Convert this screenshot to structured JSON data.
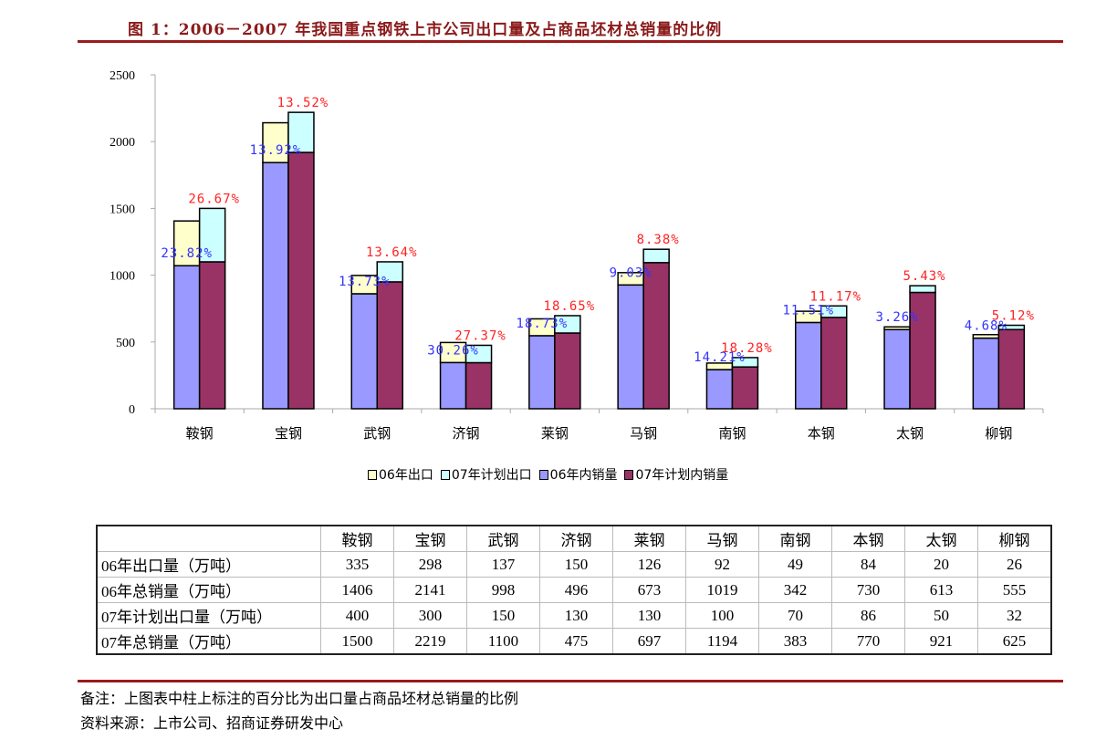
{
  "title": "图 1：2006－2007 年我国重点钢铁上市公司出口量及占商品坯材总销量的比例",
  "chart_data": {
    "type": "bar",
    "stacked": true,
    "categories": [
      "鞍钢",
      "宝钢",
      "武钢",
      "济钢",
      "莱钢",
      "马钢",
      "南钢",
      "本钢",
      "太钢",
      "柳钢"
    ],
    "yticks": [
      "0",
      "500",
      "1000",
      "1500",
      "2000",
      "2500"
    ],
    "ylim": [
      0,
      2500
    ],
    "grid": false,
    "legend_position": "bottom",
    "series": [
      {
        "name": "06年出口",
        "stack": "06",
        "color": "#FFFFCC",
        "values": [
          335,
          298,
          137,
          150,
          126,
          92,
          49,
          84,
          20,
          26
        ]
      },
      {
        "name": "07年计划出口",
        "stack": "07",
        "color": "#CCFFFF",
        "values": [
          400,
          300,
          150,
          130,
          130,
          100,
          70,
          86,
          50,
          32
        ]
      },
      {
        "name": "06年内销量",
        "stack": "06",
        "color": "#9999FF",
        "values": [
          1071,
          1843,
          861,
          346,
          547,
          927,
          293,
          646,
          593,
          529
        ]
      },
      {
        "name": "07年计划内销量",
        "stack": "07",
        "color": "#993366",
        "values": [
          1100,
          1919,
          950,
          345,
          567,
          1094,
          313,
          684,
          871,
          593
        ]
      }
    ],
    "labels_06": [
      "23.82%",
      "13.92%",
      "13.73%",
      "30.26%",
      "18.73%",
      "9.03%",
      "14.21%",
      "11.51%",
      "3.26%",
      "4.68%"
    ],
    "labels_07": [
      "26.67%",
      "13.52%",
      "13.64%",
      "27.37%",
      "18.65%",
      "8.38%",
      "18.28%",
      "11.17%",
      "5.43%",
      "5.12%"
    ],
    "label_colors": {
      "06": "#3333FF",
      "07": "#FF2222"
    }
  },
  "legend": [
    {
      "label": "06年出口",
      "color": "#FFFFCC"
    },
    {
      "label": "07年计划出口",
      "color": "#CCFFFF"
    },
    {
      "label": "06年内销量",
      "color": "#9999FF"
    },
    {
      "label": "07年计划内销量",
      "color": "#993366"
    }
  ],
  "table": {
    "header": [
      "",
      "鞍钢",
      "宝钢",
      "武钢",
      "济钢",
      "莱钢",
      "马钢",
      "南钢",
      "本钢",
      "太钢",
      "柳钢"
    ],
    "rows": [
      {
        "label": "06年出口量（万吨）",
        "values": [
          "335",
          "298",
          "137",
          "150",
          "126",
          "92",
          "49",
          "84",
          "20",
          "26"
        ]
      },
      {
        "label": "06年总销量（万吨）",
        "values": [
          "1406",
          "2141",
          "998",
          "496",
          "673",
          "1019",
          "342",
          "730",
          "613",
          "555"
        ]
      },
      {
        "label": "07年计划出口量（万吨）",
        "values": [
          "400",
          "300",
          "150",
          "130",
          "130",
          "100",
          "70",
          "86",
          "50",
          "32"
        ]
      },
      {
        "label": "07年总销量（万吨）",
        "values": [
          "1500",
          "2219",
          "1100",
          "475",
          "697",
          "1194",
          "383",
          "770",
          "921",
          "625"
        ]
      }
    ]
  },
  "notes": {
    "remark": "备注：上图表中柱上标注的百分比为出口量占商品坯材总销量的比例",
    "source": "资料来源：上市公司、招商证券研发中心"
  }
}
